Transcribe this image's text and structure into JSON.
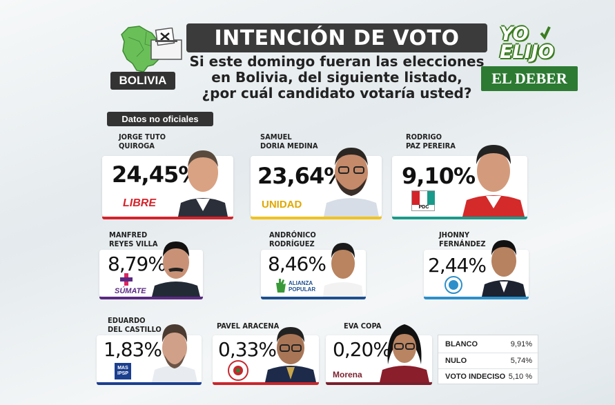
{
  "header": {
    "country": "BOLIVIA",
    "title": "INTENCIÓN DE VOTO",
    "question_lines": [
      "Si este domingo fueran las elecciones",
      "en Bolivia, del siguiente listado,",
      "¿por cuál candidato votaría usted?"
    ],
    "brand_line1": "YO",
    "brand_line2": "ELIJO",
    "publisher": "EL DEBER",
    "note": "Datos no oficiales"
  },
  "colors": {
    "libre": "#d5232a",
    "unidad": "#f1c21b",
    "pdc": "#1a9a8a",
    "sumate": "#5a2a82",
    "alianza": "#1d4f8f",
    "jhonny": "#2c8fc9",
    "mas": "#1b3f8f",
    "pavel": "#c8262c",
    "morena": "#7a1f2c"
  },
  "candidates": [
    {
      "name_lines": [
        "JORGE TUTO",
        "QUIROGA"
      ],
      "pct": "24,45%",
      "party": "LIBRE",
      "party_icon": "libre-logo"
    },
    {
      "name_lines": [
        "SAMUEL",
        "DORIA MEDINA"
      ],
      "pct": "23,64%",
      "party": "UNIDAD",
      "party_icon": "unidad-logo"
    },
    {
      "name_lines": [
        "RODRIGO",
        "PAZ PEREIRA"
      ],
      "pct": "9,10%",
      "party": "PDC",
      "party_icon": "pdc-logo"
    },
    {
      "name_lines": [
        "MANFRED",
        "REYES VILLA"
      ],
      "pct": "8,79%",
      "party": "SÚMATE",
      "party_icon": "sumate-logo"
    },
    {
      "name_lines": [
        "ANDRÓNICO",
        "RODRÍGUEZ"
      ],
      "pct": "8,46%",
      "party": "ALIANZA POPULAR",
      "party_icon": "alianza-logo"
    },
    {
      "name_lines": [
        "JHONNY",
        "FERNÁNDEZ"
      ],
      "pct": "2,44%",
      "party": "",
      "party_icon": "jhonny-party-logo"
    },
    {
      "name_lines": [
        "EDUARDO",
        "DEL CASTILLO"
      ],
      "pct": "1,83%",
      "party": "MAS IPSP",
      "party_icon": "mas-logo"
    },
    {
      "name_lines": [
        "PAVEL ARACENA"
      ],
      "pct": "0,33%",
      "party": "",
      "party_icon": "pavel-party-logo"
    },
    {
      "name_lines": [
        "EVA COPA"
      ],
      "pct": "0,20%",
      "party": "Morena",
      "party_icon": "morena-logo"
    }
  ],
  "others": [
    {
      "label": "BLANCO",
      "pct": "9,91%"
    },
    {
      "label": "NULO",
      "pct": "5,74%"
    },
    {
      "label": "VOTO INDECISO",
      "pct": "5,10 %"
    }
  ],
  "chart_data": {
    "type": "bar",
    "title": "INTENCIÓN DE VOTO",
    "categories": [
      "JORGE TUTO QUIROGA",
      "SAMUEL DORIA MEDINA",
      "RODRIGO PAZ PEREIRA",
      "MANFRED REYES VILLA",
      "ANDRÓNICO RODRÍGUEZ",
      "JHONNY FERNÁNDEZ",
      "EDUARDO DEL CASTILLO",
      "PAVEL ARACENA",
      "EVA COPA",
      "BLANCO",
      "NULO",
      "VOTO INDECISO"
    ],
    "values": [
      24.45,
      23.64,
      9.1,
      8.79,
      8.46,
      2.44,
      1.83,
      0.33,
      0.2,
      9.91,
      5.74,
      5.1
    ],
    "unit": "%"
  }
}
